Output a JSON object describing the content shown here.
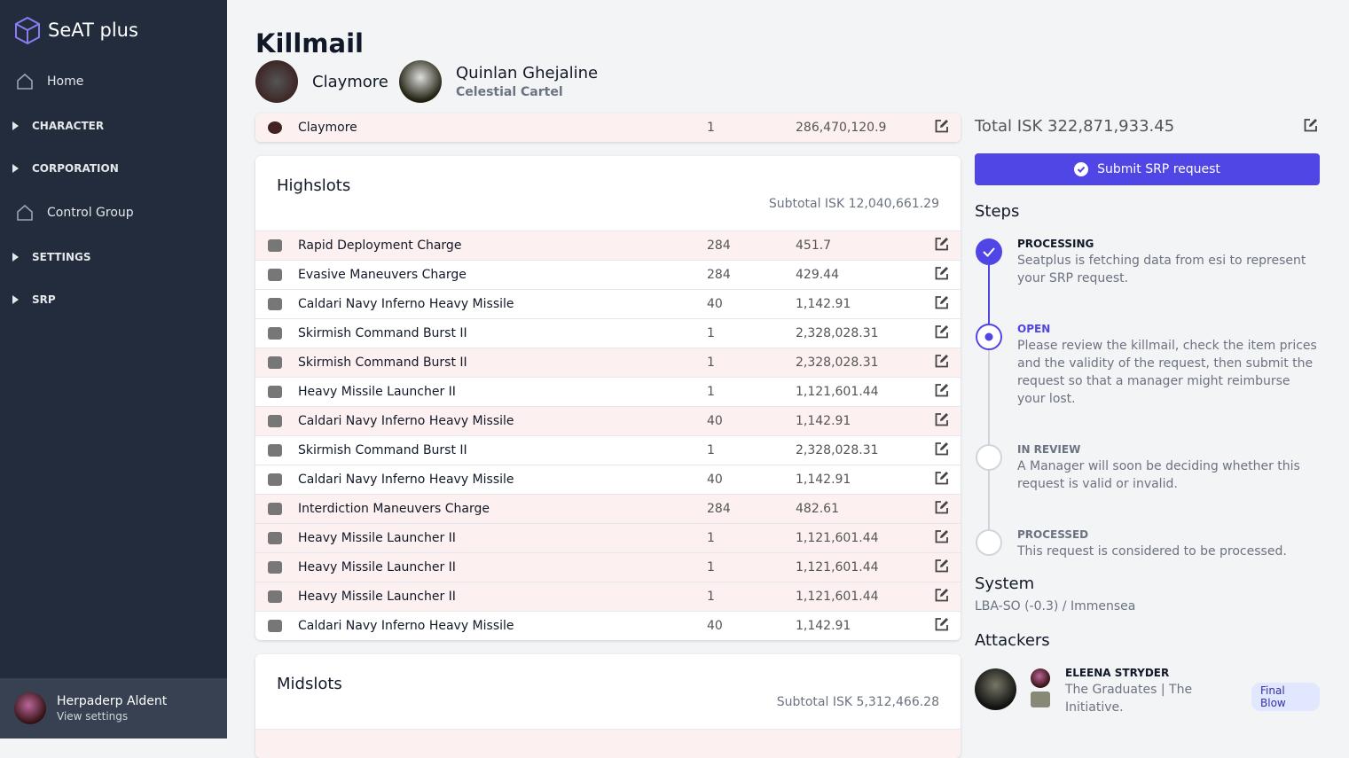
{
  "sidebar": {
    "brand": "SeAT plus",
    "nav": [
      {
        "label": "Home",
        "kind": "link"
      },
      {
        "label": "CHARACTER",
        "kind": "group"
      },
      {
        "label": "CORPORATION",
        "kind": "group"
      },
      {
        "label": "Control Group",
        "kind": "link"
      },
      {
        "label": "SETTINGS",
        "kind": "group"
      },
      {
        "label": "SRP",
        "kind": "group"
      }
    ],
    "user": {
      "name": "Herpaderp Aldent",
      "action": "View settings"
    }
  },
  "header": {
    "title": "Killmail",
    "ship": "Claymore",
    "victim": "Quinlan Ghejaline",
    "corporation": "Celestial Cartel"
  },
  "ship_row": {
    "name": "Claymore",
    "quantity": "1",
    "value": "286,470,120.9"
  },
  "sections": [
    {
      "title": "Highslots",
      "subtotal": "Subtotal ISK 12,040,661.29",
      "rows": [
        {
          "name": "Rapid Deployment Charge",
          "quantity": "284",
          "value": "451.7",
          "flagged": true
        },
        {
          "name": "Evasive Maneuvers Charge",
          "quantity": "284",
          "value": "429.44",
          "flagged": false
        },
        {
          "name": "Caldari Navy Inferno Heavy Missile",
          "quantity": "40",
          "value": "1,142.91",
          "flagged": false
        },
        {
          "name": "Skirmish Command Burst II",
          "quantity": "1",
          "value": "2,328,028.31",
          "flagged": false
        },
        {
          "name": "Skirmish Command Burst II",
          "quantity": "1",
          "value": "2,328,028.31",
          "flagged": true
        },
        {
          "name": "Heavy Missile Launcher II",
          "quantity": "1",
          "value": "1,121,601.44",
          "flagged": false
        },
        {
          "name": "Caldari Navy Inferno Heavy Missile",
          "quantity": "40",
          "value": "1,142.91",
          "flagged": true
        },
        {
          "name": "Skirmish Command Burst II",
          "quantity": "1",
          "value": "2,328,028.31",
          "flagged": false
        },
        {
          "name": "Caldari Navy Inferno Heavy Missile",
          "quantity": "40",
          "value": "1,142.91",
          "flagged": false
        },
        {
          "name": "Interdiction Maneuvers Charge",
          "quantity": "284",
          "value": "482.61",
          "flagged": true
        },
        {
          "name": "Heavy Missile Launcher II",
          "quantity": "1",
          "value": "1,121,601.44",
          "flagged": true
        },
        {
          "name": "Heavy Missile Launcher II",
          "quantity": "1",
          "value": "1,121,601.44",
          "flagged": true
        },
        {
          "name": "Heavy Missile Launcher II",
          "quantity": "1",
          "value": "1,121,601.44",
          "flagged": true
        },
        {
          "name": "Caldari Navy Inferno Heavy Missile",
          "quantity": "40",
          "value": "1,142.91",
          "flagged": false
        }
      ]
    },
    {
      "title": "Midslots",
      "subtotal": "Subtotal ISK 5,312,466.28",
      "rows": []
    }
  ],
  "summary": {
    "total": "Total ISK 322,871,933.45",
    "submit": "Submit SRP request",
    "steps_heading": "Steps",
    "steps": [
      {
        "title": "PROCESSING",
        "description": "Seatplus is fetching data from esi to represent your SRP request.",
        "state": "complete"
      },
      {
        "title": "OPEN",
        "description": "Please review the killmail, check the item prices and the validity of the request, then submit the request so that a manager might reimburse your lost.",
        "state": "current"
      },
      {
        "title": "IN REVIEW",
        "description": "A Manager will soon be deciding whether this request is valid or invalid.",
        "state": "upcoming"
      },
      {
        "title": "PROCESSED",
        "description": "This request is considered to be processed.",
        "state": "upcoming"
      }
    ],
    "system_heading": "System",
    "system": "LBA-SO (-0.3) / Immensea",
    "attackers_heading": "Attackers",
    "attackers": [
      {
        "name": "ELEENA STRYDER",
        "affiliation": "The Graduates | The Initiative.",
        "badge": "Final Blow"
      }
    ]
  }
}
